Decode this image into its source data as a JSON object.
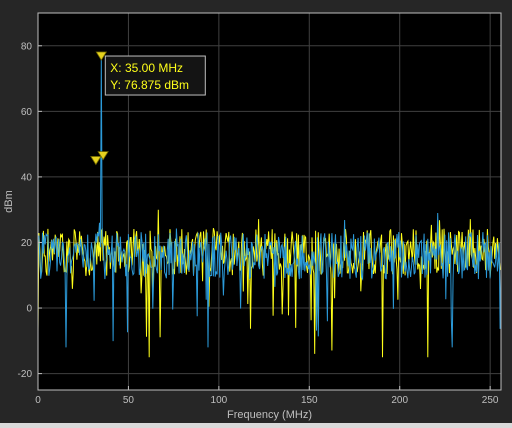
{
  "chart_data": {
    "type": "line",
    "title": "",
    "xlabel": "Frequency (MHz)",
    "ylabel": "dBm",
    "xlim": [
      0,
      256
    ],
    "ylim": [
      -25,
      90
    ],
    "xticks": [
      0,
      50,
      100,
      150,
      200,
      250
    ],
    "yticks": [
      -20,
      0,
      20,
      40,
      60,
      80
    ],
    "grid": true,
    "background": "#000000",
    "series": [
      {
        "color": "#ffff1a",
        "noise_floor": {
          "mean_dBm": 17,
          "spread_dBm": 8,
          "min_dBm": -15,
          "max_dBm": 30
        },
        "peak_markers": [
          {
            "x": 32,
            "y": 45
          },
          {
            "x": 36,
            "y": 46.5
          }
        ]
      },
      {
        "color": "#2b9ad9",
        "noise_floor": {
          "mean_dBm": 16,
          "spread_dBm": 8,
          "min_dBm": -12,
          "max_dBm": 29
        },
        "peak": {
          "x": 35.0,
          "y": 76.875
        },
        "peak_markers": [
          {
            "x": 35.0,
            "y": 76.875
          }
        ]
      }
    ],
    "datatip": {
      "x_text": "X: 35.00 MHz",
      "y_text": "Y:  76.875 dBm",
      "x": 35.0,
      "y": 76.875
    }
  }
}
